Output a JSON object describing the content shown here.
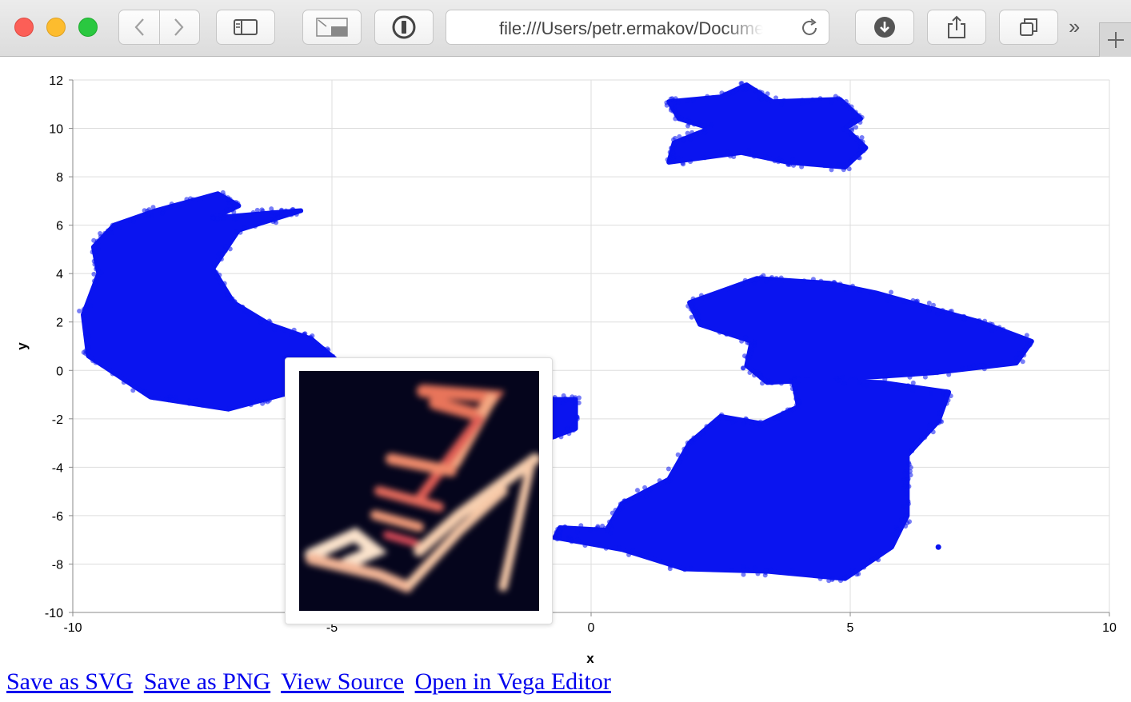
{
  "browser": {
    "url": "file:///Users/petr.ermakov/Documents/index.html"
  },
  "chart_data": {
    "type": "scatter",
    "title": "",
    "xlabel": "x",
    "ylabel": "y",
    "xlim": [
      -10,
      10
    ],
    "ylim": [
      -10,
      12
    ],
    "grid": true,
    "x_ticks": [
      "-10",
      "-5",
      "0",
      "5",
      "10"
    ],
    "y_ticks": [
      "-10",
      "-8",
      "-6",
      "-4",
      "-2",
      "0",
      "2",
      "4",
      "6",
      "8",
      "10",
      "12"
    ],
    "point_color": "#0a14f0",
    "clusters": [
      {
        "outline": [
          [
            -8.4,
            6.6
          ],
          [
            -7.2,
            7.3
          ],
          [
            -6.8,
            6.8
          ],
          [
            -7.3,
            6.3
          ],
          [
            -6.2,
            6.5
          ],
          [
            -5.6,
            6.6
          ],
          [
            -6.8,
            5.8
          ],
          [
            -7.3,
            4.2
          ],
          [
            -6.9,
            2.8
          ],
          [
            -6.2,
            1.9
          ],
          [
            -5.4,
            1.3
          ],
          [
            -4.9,
            0.4
          ],
          [
            -5.6,
            -0.8
          ],
          [
            -7.0,
            -1.6
          ],
          [
            -8.5,
            -1.1
          ],
          [
            -9.7,
            0.6
          ],
          [
            -9.8,
            2.3
          ],
          [
            -9.5,
            4.0
          ],
          [
            -9.6,
            5.1
          ],
          [
            -9.2,
            6.0
          ]
        ]
      },
      {
        "outline": [
          [
            1.5,
            11.1
          ],
          [
            2.5,
            11.3
          ],
          [
            3.0,
            11.8
          ],
          [
            3.5,
            11.1
          ],
          [
            4.8,
            11.2
          ],
          [
            5.2,
            10.4
          ],
          [
            4.9,
            10.0
          ],
          [
            5.3,
            9.2
          ],
          [
            4.9,
            8.4
          ],
          [
            3.8,
            8.6
          ],
          [
            2.9,
            9.0
          ],
          [
            1.5,
            8.6
          ],
          [
            1.6,
            9.4
          ],
          [
            2.3,
            10.0
          ],
          [
            1.7,
            10.4
          ]
        ]
      },
      {
        "outline": [
          [
            1.9,
            2.8
          ],
          [
            3.2,
            3.8
          ],
          [
            4.6,
            3.6
          ],
          [
            5.5,
            3.2
          ],
          [
            6.5,
            2.6
          ],
          [
            7.5,
            2.0
          ],
          [
            8.5,
            1.2
          ],
          [
            8.2,
            0.3
          ],
          [
            6.6,
            -0.1
          ],
          [
            5.2,
            -0.3
          ],
          [
            3.4,
            -0.5
          ],
          [
            3.0,
            0.2
          ],
          [
            3.1,
            1.2
          ],
          [
            2.1,
            1.9
          ]
        ]
      },
      {
        "outline": [
          [
            3.9,
            -0.4
          ],
          [
            5.6,
            -0.5
          ],
          [
            6.9,
            -0.9
          ],
          [
            6.7,
            -2.1
          ],
          [
            6.1,
            -3.5
          ],
          [
            6.1,
            -4.6
          ],
          [
            6.1,
            -6.0
          ],
          [
            5.8,
            -7.3
          ],
          [
            4.9,
            -8.6
          ],
          [
            3.4,
            -8.3
          ],
          [
            1.8,
            -8.2
          ],
          [
            0.6,
            -7.4
          ],
          [
            -0.7,
            -6.9
          ],
          [
            -0.6,
            -6.5
          ],
          [
            0.3,
            -6.6
          ],
          [
            0.6,
            -5.5
          ],
          [
            1.5,
            -4.5
          ],
          [
            1.9,
            -3.0
          ],
          [
            2.5,
            -1.9
          ],
          [
            3.3,
            -2.2
          ],
          [
            4.0,
            -1.5
          ]
        ]
      },
      {
        "outline": [
          [
            -0.8,
            -1.2
          ],
          [
            -0.3,
            -1.2
          ],
          [
            -0.3,
            -2.4
          ],
          [
            -0.8,
            -2.8
          ],
          [
            -1.0,
            -2.0
          ]
        ]
      }
    ],
    "outlier_points": [
      [
        6.7,
        -7.3
      ]
    ]
  },
  "tooltip": {
    "image": "sandal-thumbnail"
  },
  "links": [
    "Save as SVG",
    "Save as PNG",
    "View Source",
    "Open in Vega Editor"
  ]
}
